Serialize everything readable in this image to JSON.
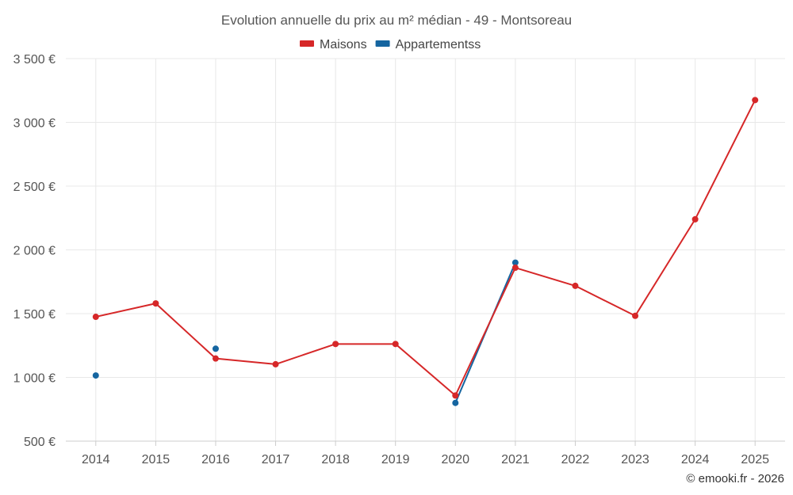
{
  "chart_data": {
    "type": "line",
    "title": "Evolution annuelle du prix au m² médian - 49 - Montsoreau",
    "categories": [
      "2014",
      "2015",
      "2016",
      "2017",
      "2018",
      "2019",
      "2020",
      "2021",
      "2022",
      "2023",
      "2024",
      "2025"
    ],
    "series": [
      {
        "name": "Maisons",
        "color": "#d62728",
        "values": [
          1475,
          1580,
          1148,
          1103,
          1262,
          1262,
          858,
          1860,
          1718,
          1483,
          2240,
          3175
        ]
      },
      {
        "name": "Appartementss",
        "color": "#1565a0",
        "values": [
          1015,
          null,
          1225,
          null,
          null,
          null,
          800,
          1900,
          null,
          null,
          null,
          null
        ]
      }
    ],
    "ylim": [
      500,
      3500
    ],
    "yticks": [
      {
        "value": 500,
        "label": "500 €"
      },
      {
        "value": 1000,
        "label": "1 000 €"
      },
      {
        "value": 1500,
        "label": "1 500 €"
      },
      {
        "value": 2000,
        "label": "2 000 €"
      },
      {
        "value": 2500,
        "label": "2 500 €"
      },
      {
        "value": 3000,
        "label": "3 000 €"
      },
      {
        "value": 3500,
        "label": "3 500 €"
      }
    ],
    "xlabel": "",
    "ylabel": "",
    "legend_position": "top-center",
    "grid": true,
    "credit": "© emooki.fr - 2026"
  }
}
